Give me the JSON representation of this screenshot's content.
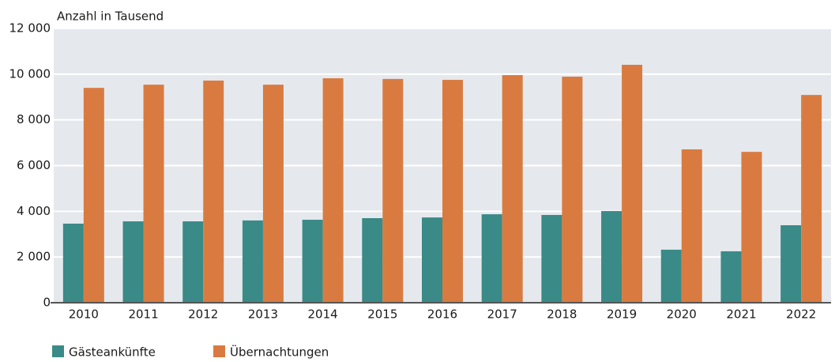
{
  "chart_data": {
    "type": "bar",
    "y_label": "Anzahl in Tausend",
    "categories": [
      "2010",
      "2011",
      "2012",
      "2013",
      "2014",
      "2015",
      "2016",
      "2017",
      "2018",
      "2019",
      "2020",
      "2021",
      "2022"
    ],
    "series": [
      {
        "name": "Gästeankünfte",
        "color": "#3a8a87",
        "values": [
          3460,
          3560,
          3560,
          3600,
          3630,
          3700,
          3730,
          3870,
          3840,
          4010,
          2320,
          2250,
          3390
        ]
      },
      {
        "name": "Übernachtungen",
        "color": "#d97b40",
        "values": [
          9400,
          9540,
          9720,
          9540,
          9820,
          9790,
          9750,
          9960,
          9890,
          10410,
          6710,
          6600,
          9090
        ]
      }
    ],
    "ylim": [
      0,
      12000
    ],
    "yticks": [
      0,
      {
        "value": 2000,
        "label": "2 000"
      },
      {
        "value": 4000,
        "label": "4 000"
      },
      {
        "value": 6000,
        "label": "6 000"
      },
      {
        "value": 8000,
        "label": "8 000"
      },
      {
        "value": 10000,
        "label": "10 000"
      },
      {
        "value": 12000,
        "label": "12 000"
      }
    ],
    "grid": true
  }
}
